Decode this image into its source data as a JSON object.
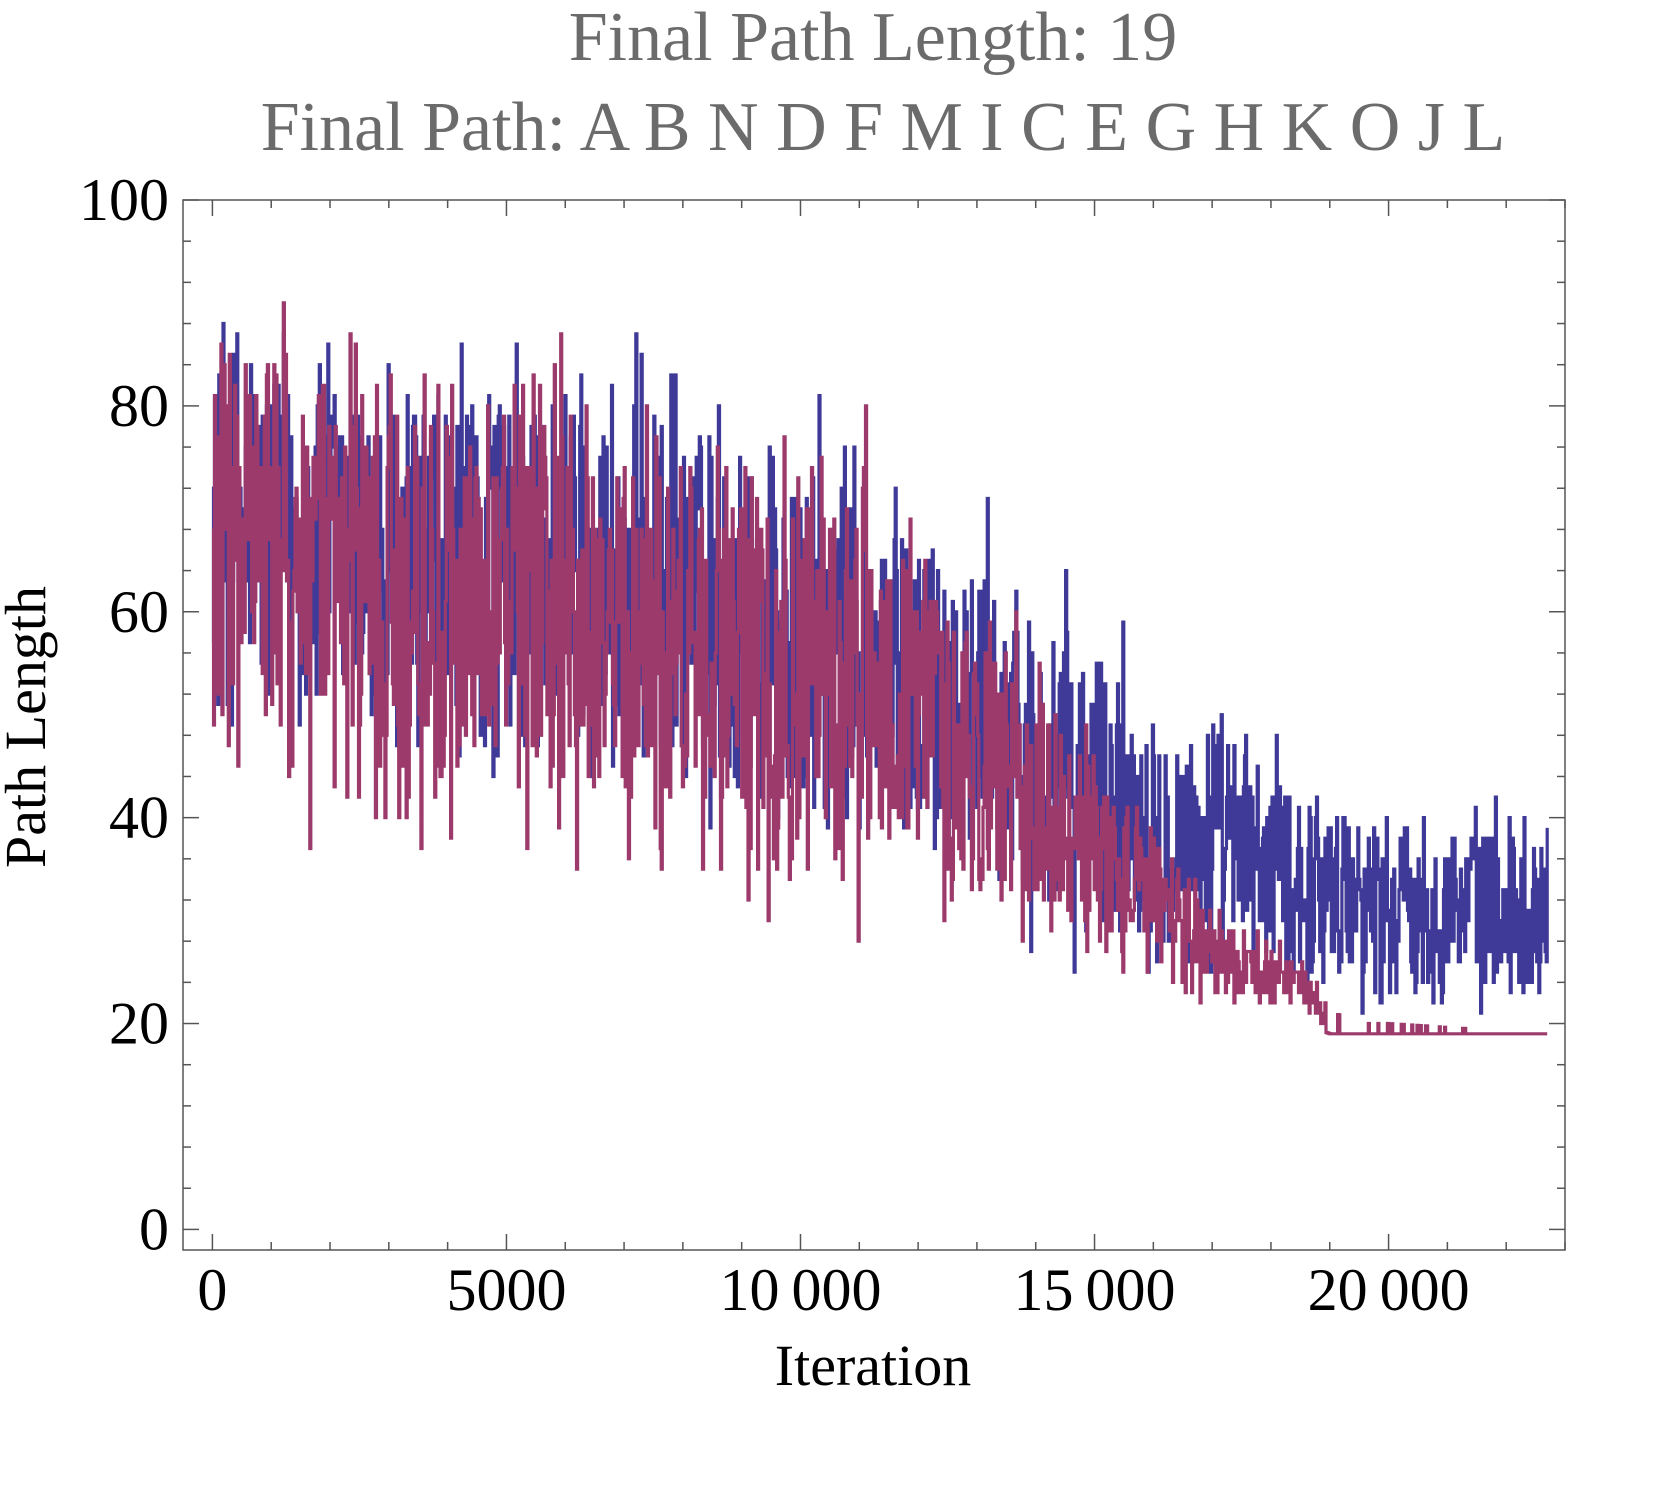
{
  "chart_data": {
    "type": "line",
    "title": "Final Path Length: 19",
    "subtitle": "Final Path: A B N D F M I C E G H K O J L",
    "xlabel": "Iteration",
    "ylabel": "Path Length",
    "xlim": [
      -500,
      23000
    ],
    "ylim": [
      -2,
      100
    ],
    "x_ticks": [
      0,
      5000,
      10000,
      15000,
      20000
    ],
    "x_tick_labels": [
      "0",
      "5000",
      "10 000",
      "15 000",
      "20 000"
    ],
    "y_ticks": [
      0,
      20,
      40,
      60,
      80,
      100
    ],
    "y_tick_labels": [
      "0",
      "20",
      "40",
      "60",
      "80",
      "100"
    ],
    "x_minor_step": 1000,
    "y_minor_step": 4,
    "grid": false,
    "x_max_iteration": 22700,
    "series": [
      {
        "role": "current",
        "color": "#3f3a98",
        "profile": [
          {
            "x": 0,
            "min": 45,
            "max": 95
          },
          {
            "x": 3000,
            "min": 38,
            "max": 90
          },
          {
            "x": 6000,
            "min": 38,
            "max": 90
          },
          {
            "x": 9000,
            "min": 33,
            "max": 85
          },
          {
            "x": 11000,
            "min": 30,
            "max": 80
          },
          {
            "x": 13000,
            "min": 30,
            "max": 72
          },
          {
            "x": 14200,
            "min": 24,
            "max": 66
          },
          {
            "x": 16500,
            "min": 22,
            "max": 55
          },
          {
            "x": 18500,
            "min": 20,
            "max": 48
          },
          {
            "x": 20000,
            "min": 20,
            "max": 43
          },
          {
            "x": 22700,
            "min": 20,
            "max": 43
          }
        ]
      },
      {
        "role": "best",
        "color": "#9c3a6c",
        "profile": [
          {
            "x": 0,
            "min": 40,
            "max": 95
          },
          {
            "x": 3000,
            "min": 32,
            "max": 90
          },
          {
            "x": 6000,
            "min": 31,
            "max": 88
          },
          {
            "x": 9000,
            "min": 27,
            "max": 82
          },
          {
            "x": 11000,
            "min": 26,
            "max": 83
          },
          {
            "x": 13000,
            "min": 27,
            "max": 65
          },
          {
            "x": 14200,
            "min": 23,
            "max": 58
          },
          {
            "x": 15500,
            "min": 23,
            "max": 45
          },
          {
            "x": 16500,
            "min": 21,
            "max": 38
          },
          {
            "x": 17500,
            "min": 21,
            "max": 30
          },
          {
            "x": 18500,
            "min": 20,
            "max": 28
          },
          {
            "x": 19000,
            "min": 19,
            "max": 21
          },
          {
            "x": 20000,
            "min": 19,
            "max": 20
          },
          {
            "x": 22700,
            "min": 19,
            "max": 19
          }
        ],
        "final_value": 19
      }
    ]
  }
}
